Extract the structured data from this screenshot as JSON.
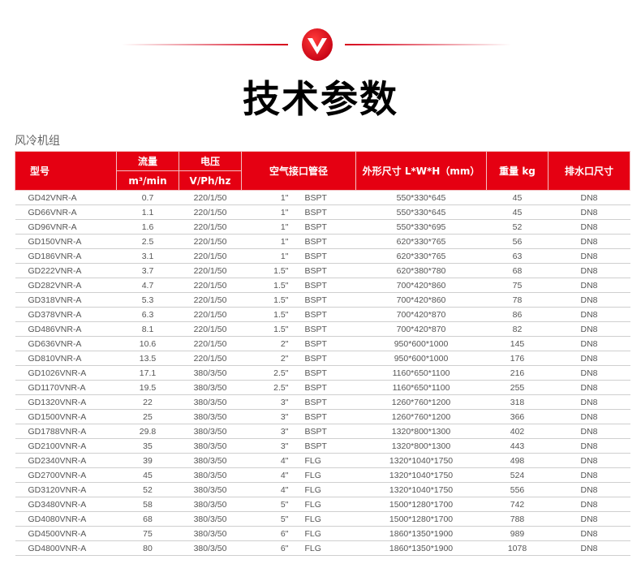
{
  "page": {
    "title": "技术参数",
    "section": "风冷机组",
    "accent": "#e50012"
  },
  "headers": {
    "model": "型号",
    "flow": "流量",
    "flow_unit": "m³/min",
    "voltage": "电压",
    "voltage_unit": "V/Ph/hz",
    "pipe": "空气接口管径",
    "dims": "外形尺寸 L*W*H（mm）",
    "weight": "重量 kg",
    "drain": "排水口尺寸"
  },
  "rows": [
    [
      "GD42VNR-A",
      "0.7",
      "220/1/50",
      "1\"",
      "BSPT",
      "550*330*645",
      "45",
      "DN8"
    ],
    [
      "GD66VNR-A",
      "1.1",
      "220/1/50",
      "1\"",
      "BSPT",
      "550*330*645",
      "45",
      "DN8"
    ],
    [
      "GD96VNR-A",
      "1.6",
      "220/1/50",
      "1\"",
      "BSPT",
      "550*330*695",
      "52",
      "DN8"
    ],
    [
      "GD150VNR-A",
      "2.5",
      "220/1/50",
      "1\"",
      "BSPT",
      "620*330*765",
      "56",
      "DN8"
    ],
    [
      "GD186VNR-A",
      "3.1",
      "220/1/50",
      "1\"",
      "BSPT",
      "620*330*765",
      "63",
      "DN8"
    ],
    [
      "GD222VNR-A",
      "3.7",
      "220/1/50",
      "1.5\"",
      "BSPT",
      "620*380*780",
      "68",
      "DN8"
    ],
    [
      "GD282VNR-A",
      "4.7",
      "220/1/50",
      "1.5\"",
      "BSPT",
      "700*420*860",
      "75",
      "DN8"
    ],
    [
      "GD318VNR-A",
      "5.3",
      "220/1/50",
      "1.5\"",
      "BSPT",
      "700*420*860",
      "78",
      "DN8"
    ],
    [
      "GD378VNR-A",
      "6.3",
      "220/1/50",
      "1.5\"",
      "BSPT",
      "700*420*870",
      "86",
      "DN8"
    ],
    [
      "GD486VNR-A",
      "8.1",
      "220/1/50",
      "1.5\"",
      "BSPT",
      "700*420*870",
      "82",
      "DN8"
    ],
    [
      "GD636VNR-A",
      "10.6",
      "220/1/50",
      "2\"",
      "BSPT",
      "950*600*1000",
      "145",
      "DN8"
    ],
    [
      "GD810VNR-A",
      "13.5",
      "220/1/50",
      "2\"",
      "BSPT",
      "950*600*1000",
      "176",
      "DN8"
    ],
    [
      "GD1026VNR-A",
      "17.1",
      "380/3/50",
      "2.5\"",
      "BSPT",
      "1160*650*1100",
      "216",
      "DN8"
    ],
    [
      "GD1170VNR-A",
      "19.5",
      "380/3/50",
      "2.5\"",
      "BSPT",
      "1160*650*1100",
      "255",
      "DN8"
    ],
    [
      "GD1320VNR-A",
      "22",
      "380/3/50",
      "3\"",
      "BSPT",
      "1260*760*1200",
      "318",
      "DN8"
    ],
    [
      "GD1500VNR-A",
      "25",
      "380/3/50",
      "3\"",
      "BSPT",
      "1260*760*1200",
      "366",
      "DN8"
    ],
    [
      "GD1788VNR-A",
      "29.8",
      "380/3/50",
      "3\"",
      "BSPT",
      "1320*800*1300",
      "402",
      "DN8"
    ],
    [
      "GD2100VNR-A",
      "35",
      "380/3/50",
      "3\"",
      "BSPT",
      "1320*800*1300",
      "443",
      "DN8"
    ],
    [
      "GD2340VNR-A",
      "39",
      "380/3/50",
      "4\"",
      "FLG",
      "1320*1040*1750",
      "498",
      "DN8"
    ],
    [
      "GD2700VNR-A",
      "45",
      "380/3/50",
      "4\"",
      "FLG",
      "1320*1040*1750",
      "524",
      "DN8"
    ],
    [
      "GD3120VNR-A",
      "52",
      "380/3/50",
      "4\"",
      "FLG",
      "1320*1040*1750",
      "556",
      "DN8"
    ],
    [
      "GD3480VNR-A",
      "58",
      "380/3/50",
      "5\"",
      "FLG",
      "1500*1280*1700",
      "742",
      "DN8"
    ],
    [
      "GD4080VNR-A",
      "68",
      "380/3/50",
      "5\"",
      "FLG",
      "1500*1280*1700",
      "788",
      "DN8"
    ],
    [
      "GD4500VNR-A",
      "75",
      "380/3/50",
      "6\"",
      "FLG",
      "1860*1350*1900",
      "989",
      "DN8"
    ],
    [
      "GD4800VNR-A",
      "80",
      "380/3/50",
      "6\"",
      "FLG",
      "1860*1350*1900",
      "1078",
      "DN8"
    ]
  ]
}
